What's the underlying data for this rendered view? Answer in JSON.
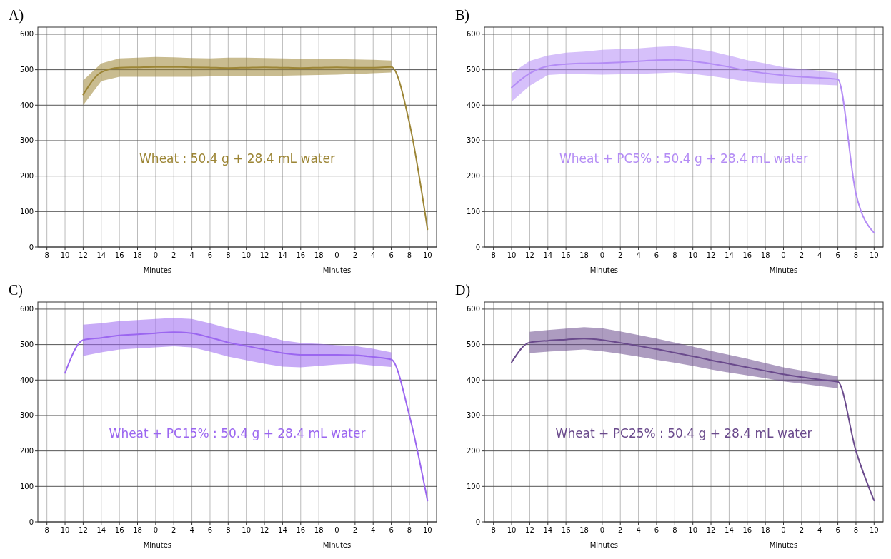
{
  "chart_data": [
    {
      "type": "line",
      "title": "A)",
      "xlabel": "Minutes",
      "annotations": [
        "Wheat : 50.4 g + 28.4 mL water",
        "Minutes"
      ],
      "grid": true,
      "ylim": [
        0,
        620
      ],
      "yticks": [
        0,
        100,
        200,
        300,
        400,
        500,
        600
      ],
      "categories": [
        "8",
        "10",
        "12",
        "14",
        "16",
        "18",
        "0",
        "2",
        "4",
        "6",
        "8",
        "10",
        "12",
        "14",
        "16",
        "18",
        "0",
        "2",
        "4",
        "6",
        "8",
        "10"
      ],
      "series": [
        {
          "color": "#9c8535",
          "values": [
            null,
            null,
            430,
            493,
            506,
            507,
            508,
            508,
            507,
            506,
            505,
            506,
            507,
            506,
            505,
            506,
            507,
            506,
            506,
            508,
            350,
            50
          ],
          "lower": [
            null,
            null,
            400,
            468,
            480,
            480,
            480,
            480,
            480,
            481,
            482,
            482,
            482,
            483,
            484,
            485,
            486,
            488,
            490,
            492,
            null,
            null
          ],
          "upper": [
            null,
            null,
            470,
            518,
            532,
            534,
            536,
            535,
            533,
            532,
            534,
            534,
            533,
            532,
            531,
            530,
            530,
            529,
            528,
            526,
            null,
            null
          ]
        }
      ]
    },
    {
      "type": "line",
      "title": "B)",
      "xlabel": "Minutes",
      "annotations": [
        "Wheat  + PC5% : 50.4 g + 28.4 mL water",
        "Minutes"
      ],
      "grid": true,
      "ylim": [
        0,
        620
      ],
      "yticks": [
        0,
        100,
        200,
        300,
        400,
        500,
        600
      ],
      "categories": [
        "8",
        "10",
        "12",
        "14",
        "16",
        "18",
        "0",
        "2",
        "4",
        "6",
        "8",
        "10",
        "12",
        "14",
        "16",
        "18",
        "0",
        "2",
        "4",
        "6",
        "8",
        "10"
      ],
      "series": [
        {
          "color": "#b48cf5",
          "values": [
            null,
            450,
            490,
            510,
            516,
            518,
            519,
            521,
            524,
            527,
            528,
            524,
            517,
            508,
            497,
            490,
            484,
            480,
            477,
            473,
            150,
            40
          ],
          "lower": [
            null,
            410,
            455,
            485,
            488,
            487,
            486,
            487,
            488,
            490,
            492,
            488,
            482,
            475,
            466,
            463,
            461,
            459,
            458,
            456,
            null,
            null
          ],
          "upper": [
            null,
            490,
            525,
            540,
            548,
            551,
            556,
            558,
            560,
            564,
            566,
            560,
            552,
            540,
            527,
            518,
            507,
            502,
            497,
            490,
            null,
            null
          ]
        }
      ]
    },
    {
      "type": "line",
      "title": "C)",
      "xlabel": "Minutes",
      "annotations": [
        "Wheat  + PC15% : 50.4 g + 28.4 mL water",
        "Minutes"
      ],
      "grid": true,
      "ylim": [
        0,
        620
      ],
      "yticks": [
        0,
        100,
        200,
        300,
        400,
        500,
        600
      ],
      "categories": [
        "8",
        "10",
        "12",
        "14",
        "16",
        "18",
        "0",
        "2",
        "4",
        "6",
        "8",
        "10",
        "12",
        "14",
        "16",
        "18",
        "0",
        "2",
        "4",
        "6",
        "8",
        "10"
      ],
      "series": [
        {
          "color": "#9b66f0",
          "values": [
            null,
            420,
            513,
            519,
            526,
            529,
            532,
            535,
            532,
            520,
            506,
            496,
            486,
            476,
            471,
            471,
            471,
            470,
            465,
            458,
            300,
            60
          ],
          "lower": [
            null,
            null,
            468,
            478,
            486,
            489,
            492,
            495,
            492,
            480,
            466,
            456,
            446,
            438,
            436,
            440,
            444,
            446,
            441,
            437,
            null,
            null
          ],
          "upper": [
            null,
            null,
            556,
            560,
            566,
            569,
            572,
            575,
            572,
            560,
            546,
            536,
            526,
            512,
            505,
            502,
            498,
            496,
            488,
            478,
            null,
            null
          ]
        }
      ]
    },
    {
      "type": "line",
      "title": "D)",
      "xlabel": "Minutes",
      "annotations": [
        "Wheat  + PC25% : 50.4 g + 28.4 mL water",
        "Minutes"
      ],
      "grid": true,
      "ylim": [
        0,
        620
      ],
      "yticks": [
        0,
        100,
        200,
        300,
        400,
        500,
        600
      ],
      "categories": [
        "8",
        "10",
        "12",
        "14",
        "16",
        "18",
        "0",
        "2",
        "4",
        "6",
        "8",
        "10",
        "12",
        "14",
        "16",
        "18",
        "0",
        "2",
        "4",
        "6",
        "8",
        "10"
      ],
      "series": [
        {
          "color": "#6a4a8c",
          "values": [
            null,
            450,
            506,
            511,
            514,
            517,
            513,
            505,
            496,
            487,
            477,
            467,
            456,
            446,
            436,
            426,
            416,
            408,
            401,
            395,
            200,
            60
          ],
          "lower": [
            null,
            null,
            476,
            480,
            483,
            486,
            481,
            474,
            466,
            457,
            449,
            440,
            430,
            421,
            413,
            405,
            396,
            390,
            383,
            377,
            null,
            null
          ],
          "upper": [
            null,
            null,
            536,
            541,
            545,
            549,
            546,
            537,
            527,
            517,
            506,
            494,
            482,
            471,
            460,
            448,
            436,
            427,
            418,
            411,
            null,
            null
          ]
        }
      ]
    }
  ]
}
